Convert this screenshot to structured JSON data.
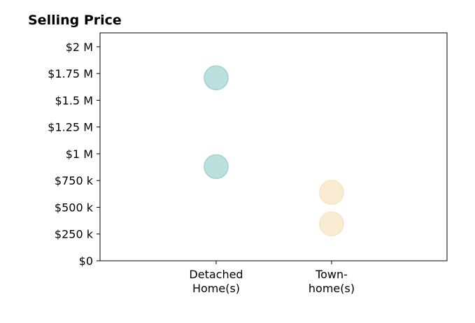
{
  "chart_data": {
    "type": "scatter",
    "title": "Selling Price",
    "xlabel": "",
    "ylabel": "",
    "categories": [
      [
        "Detached",
        "Home(s)"
      ],
      [
        "Town-",
        "home(s)"
      ]
    ],
    "y_ticks": [
      {
        "value": 0,
        "label": "$0"
      },
      {
        "value": 250000,
        "label": "$250 k"
      },
      {
        "value": 500000,
        "label": "$500 k"
      },
      {
        "value": 750000,
        "label": "$750 k"
      },
      {
        "value": 1000000,
        "label": "$1 M"
      },
      {
        "value": 1250000,
        "label": "$1.25 M"
      },
      {
        "value": 1500000,
        "label": "$1.5 M"
      },
      {
        "value": 1750000,
        "label": "$1.75 M"
      },
      {
        "value": 2000000,
        "label": "$2 M"
      }
    ],
    "ylim": [
      0,
      2130000
    ],
    "grid": false,
    "points": [
      {
        "category": 0,
        "y": 1710000,
        "color": "#9fd3cf"
      },
      {
        "category": 0,
        "y": 880000,
        "color": "#9fd3cf"
      },
      {
        "category": 1,
        "y": 640000,
        "color": "#f6e4c0"
      },
      {
        "category": 1,
        "y": 345000,
        "color": "#f6e4c0"
      }
    ],
    "colors": {
      "detached": "#9fd3cf",
      "townhome": "#f6e4c0"
    }
  }
}
